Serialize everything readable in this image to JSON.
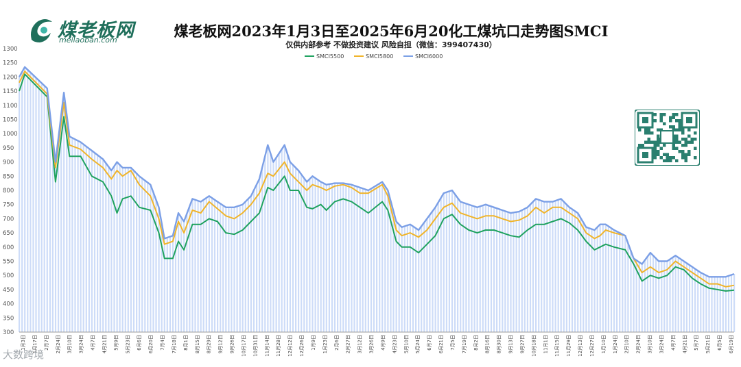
{
  "header": {
    "logo_name": "煤老板网",
    "logo_site": "meilaoban.com",
    "title": "煤老板网2023年1月3日至2025年6月20化工煤坑口走势图SMCI",
    "subtitle": "仅供内部参考 不做投资建议 风险自担（微信：399407430）"
  },
  "watermark": "大数跨境",
  "colors": {
    "smci5500": "#1fa25f",
    "smci5800": "#f0b429",
    "smci6000": "#7b9fe6",
    "fill": "#bcd0f5",
    "brand": "#1f6f5b"
  },
  "chart_data": {
    "type": "line",
    "title": "煤老板网2023年1月3日至2025年6月20化工煤坑口走势图SMCI",
    "ylim": [
      300,
      1300
    ],
    "yticks": [
      300,
      350,
      400,
      450,
      500,
      550,
      600,
      650,
      700,
      750,
      800,
      850,
      900,
      950,
      1000,
      1050,
      1100,
      1150,
      1200,
      1250,
      1300
    ],
    "x_tick_labels": [
      "1月3日",
      "1月17日",
      "2月7日",
      "2月24日",
      "3月10日",
      "3月24日",
      "4月7日",
      "4月21日",
      "5月9日",
      "5月23日",
      "6月6日",
      "6月20日",
      "7月4日",
      "7月18日",
      "8月1日",
      "8月15日",
      "8月29日",
      "9月12日",
      "9月26日",
      "10月17日",
      "10月31日",
      "11月14日",
      "11月28日",
      "12月12日",
      "12月26日",
      "1月9日",
      "1月23日",
      "2月6日",
      "2月27日",
      "3月12日",
      "3月26日",
      "4月9日",
      "4月23日",
      "5月10日",
      "5月24日",
      "6月7日",
      "6月21日",
      "7月5日",
      "7月19日",
      "8月2日",
      "8月16日",
      "8月30日",
      "9月13日",
      "9月27日",
      "10月18日",
      "11月1日",
      "11月15日",
      "11月29日",
      "12月13日",
      "12月27日",
      "1月10日",
      "1月24日",
      "2月10日",
      "2月24日",
      "3月10日",
      "3月24日",
      "4月7日",
      "4月21日",
      "5月7日",
      "5月21日",
      "6月5日",
      "6月19日"
    ],
    "grid": false,
    "legend": "top-center",
    "series": [
      {
        "name": "SMCI5500",
        "points": [
          [
            0,
            1150
          ],
          [
            2,
            1210
          ],
          [
            10,
            1130
          ],
          [
            13,
            830
          ],
          [
            16,
            1060
          ],
          [
            18,
            920
          ],
          [
            22,
            920
          ],
          [
            26,
            850
          ],
          [
            30,
            830
          ],
          [
            33,
            780
          ],
          [
            35,
            720
          ],
          [
            37,
            770
          ],
          [
            40,
            780
          ],
          [
            43,
            740
          ],
          [
            47,
            730
          ],
          [
            50,
            650
          ],
          [
            52,
            560
          ],
          [
            55,
            560
          ],
          [
            57,
            620
          ],
          [
            59,
            590
          ],
          [
            62,
            680
          ],
          [
            65,
            680
          ],
          [
            68,
            700
          ],
          [
            71,
            690
          ],
          [
            74,
            650
          ],
          [
            77,
            645
          ],
          [
            80,
            660
          ],
          [
            83,
            690
          ],
          [
            86,
            720
          ],
          [
            89,
            810
          ],
          [
            91,
            800
          ],
          [
            95,
            850
          ],
          [
            97,
            800
          ],
          [
            100,
            800
          ],
          [
            103,
            740
          ],
          [
            105,
            735
          ],
          [
            108,
            750
          ],
          [
            110,
            730
          ],
          [
            113,
            760
          ],
          [
            116,
            770
          ],
          [
            119,
            760
          ],
          [
            122,
            740
          ],
          [
            125,
            720
          ],
          [
            130,
            760
          ],
          [
            132,
            730
          ],
          [
            135,
            620
          ],
          [
            137,
            600
          ],
          [
            140,
            600
          ],
          [
            143,
            580
          ],
          [
            146,
            610
          ],
          [
            149,
            640
          ],
          [
            152,
            700
          ],
          [
            155,
            715
          ],
          [
            158,
            680
          ],
          [
            161,
            660
          ],
          [
            164,
            650
          ],
          [
            167,
            660
          ],
          [
            170,
            660
          ],
          [
            173,
            650
          ],
          [
            176,
            640
          ],
          [
            179,
            635
          ],
          [
            182,
            660
          ],
          [
            185,
            680
          ],
          [
            188,
            680
          ],
          [
            191,
            690
          ],
          [
            194,
            700
          ],
          [
            197,
            685
          ],
          [
            200,
            660
          ],
          [
            203,
            620
          ],
          [
            206,
            590
          ],
          [
            208,
            600
          ],
          [
            210,
            610
          ],
          [
            213,
            600
          ],
          [
            217,
            590
          ],
          [
            220,
            540
          ],
          [
            223,
            480
          ],
          [
            226,
            500
          ],
          [
            229,
            490
          ],
          [
            232,
            500
          ],
          [
            235,
            530
          ],
          [
            238,
            520
          ],
          [
            241,
            490
          ],
          [
            244,
            470
          ],
          [
            247,
            455
          ],
          [
            250,
            450
          ],
          [
            253,
            445
          ],
          [
            256,
            448
          ]
        ]
      },
      {
        "name": "SMCI5800",
        "points": [
          [
            0,
            1180
          ],
          [
            2,
            1220
          ],
          [
            10,
            1140
          ],
          [
            13,
            880
          ],
          [
            16,
            1110
          ],
          [
            18,
            960
          ],
          [
            22,
            945
          ],
          [
            26,
            910
          ],
          [
            30,
            880
          ],
          [
            33,
            840
          ],
          [
            35,
            870
          ],
          [
            37,
            850
          ],
          [
            40,
            870
          ],
          [
            43,
            820
          ],
          [
            47,
            780
          ],
          [
            50,
            700
          ],
          [
            52,
            610
          ],
          [
            55,
            620
          ],
          [
            57,
            690
          ],
          [
            59,
            650
          ],
          [
            62,
            730
          ],
          [
            65,
            720
          ],
          [
            68,
            760
          ],
          [
            71,
            735
          ],
          [
            74,
            710
          ],
          [
            77,
            700
          ],
          [
            80,
            720
          ],
          [
            83,
            750
          ],
          [
            86,
            790
          ],
          [
            89,
            860
          ],
          [
            91,
            850
          ],
          [
            95,
            900
          ],
          [
            97,
            860
          ],
          [
            100,
            830
          ],
          [
            103,
            800
          ],
          [
            105,
            820
          ],
          [
            108,
            810
          ],
          [
            110,
            800
          ],
          [
            113,
            815
          ],
          [
            116,
            820
          ],
          [
            119,
            810
          ],
          [
            122,
            790
          ],
          [
            125,
            790
          ],
          [
            130,
            820
          ],
          [
            132,
            780
          ],
          [
            135,
            660
          ],
          [
            137,
            640
          ],
          [
            140,
            650
          ],
          [
            143,
            635
          ],
          [
            146,
            660
          ],
          [
            149,
            700
          ],
          [
            152,
            740
          ],
          [
            155,
            755
          ],
          [
            158,
            720
          ],
          [
            161,
            710
          ],
          [
            164,
            700
          ],
          [
            167,
            710
          ],
          [
            170,
            710
          ],
          [
            173,
            700
          ],
          [
            176,
            690
          ],
          [
            179,
            695
          ],
          [
            182,
            710
          ],
          [
            185,
            740
          ],
          [
            188,
            720
          ],
          [
            191,
            740
          ],
          [
            194,
            740
          ],
          [
            197,
            720
          ],
          [
            200,
            700
          ],
          [
            203,
            650
          ],
          [
            206,
            630
          ],
          [
            208,
            640
          ],
          [
            210,
            660
          ],
          [
            213,
            650
          ],
          [
            217,
            640
          ],
          [
            220,
            560
          ],
          [
            223,
            510
          ],
          [
            226,
            530
          ],
          [
            229,
            510
          ],
          [
            232,
            520
          ],
          [
            235,
            550
          ],
          [
            238,
            530
          ],
          [
            241,
            510
          ],
          [
            244,
            490
          ],
          [
            247,
            470
          ],
          [
            250,
            470
          ],
          [
            253,
            460
          ],
          [
            256,
            465
          ]
        ]
      },
      {
        "name": "SMCI6000",
        "points": [
          [
            0,
            1200
          ],
          [
            2,
            1235
          ],
          [
            10,
            1160
          ],
          [
            13,
            900
          ],
          [
            16,
            1145
          ],
          [
            18,
            990
          ],
          [
            22,
            970
          ],
          [
            26,
            940
          ],
          [
            30,
            910
          ],
          [
            33,
            870
          ],
          [
            35,
            900
          ],
          [
            37,
            880
          ],
          [
            40,
            880
          ],
          [
            43,
            850
          ],
          [
            47,
            820
          ],
          [
            50,
            740
          ],
          [
            52,
            630
          ],
          [
            55,
            640
          ],
          [
            57,
            720
          ],
          [
            59,
            690
          ],
          [
            62,
            770
          ],
          [
            65,
            760
          ],
          [
            68,
            780
          ],
          [
            71,
            760
          ],
          [
            74,
            740
          ],
          [
            77,
            740
          ],
          [
            80,
            750
          ],
          [
            83,
            780
          ],
          [
            86,
            840
          ],
          [
            89,
            960
          ],
          [
            91,
            900
          ],
          [
            95,
            960
          ],
          [
            97,
            900
          ],
          [
            100,
            870
          ],
          [
            103,
            830
          ],
          [
            105,
            850
          ],
          [
            108,
            830
          ],
          [
            110,
            820
          ],
          [
            113,
            825
          ],
          [
            116,
            825
          ],
          [
            119,
            820
          ],
          [
            122,
            810
          ],
          [
            125,
            800
          ],
          [
            130,
            830
          ],
          [
            132,
            800
          ],
          [
            135,
            690
          ],
          [
            137,
            670
          ],
          [
            140,
            680
          ],
          [
            143,
            660
          ],
          [
            146,
            700
          ],
          [
            149,
            740
          ],
          [
            152,
            790
          ],
          [
            155,
            800
          ],
          [
            158,
            760
          ],
          [
            161,
            750
          ],
          [
            164,
            740
          ],
          [
            167,
            750
          ],
          [
            170,
            740
          ],
          [
            173,
            730
          ],
          [
            176,
            720
          ],
          [
            179,
            725
          ],
          [
            182,
            740
          ],
          [
            185,
            770
          ],
          [
            188,
            760
          ],
          [
            191,
            760
          ],
          [
            194,
            770
          ],
          [
            197,
            740
          ],
          [
            200,
            720
          ],
          [
            203,
            670
          ],
          [
            206,
            660
          ],
          [
            208,
            680
          ],
          [
            210,
            680
          ],
          [
            213,
            660
          ],
          [
            217,
            640
          ],
          [
            220,
            560
          ],
          [
            223,
            540
          ],
          [
            226,
            580
          ],
          [
            229,
            550
          ],
          [
            232,
            550
          ],
          [
            235,
            570
          ],
          [
            238,
            550
          ],
          [
            241,
            530
          ],
          [
            244,
            510
          ],
          [
            247,
            495
          ],
          [
            250,
            495
          ],
          [
            253,
            495
          ],
          [
            256,
            505
          ]
        ]
      }
    ]
  }
}
